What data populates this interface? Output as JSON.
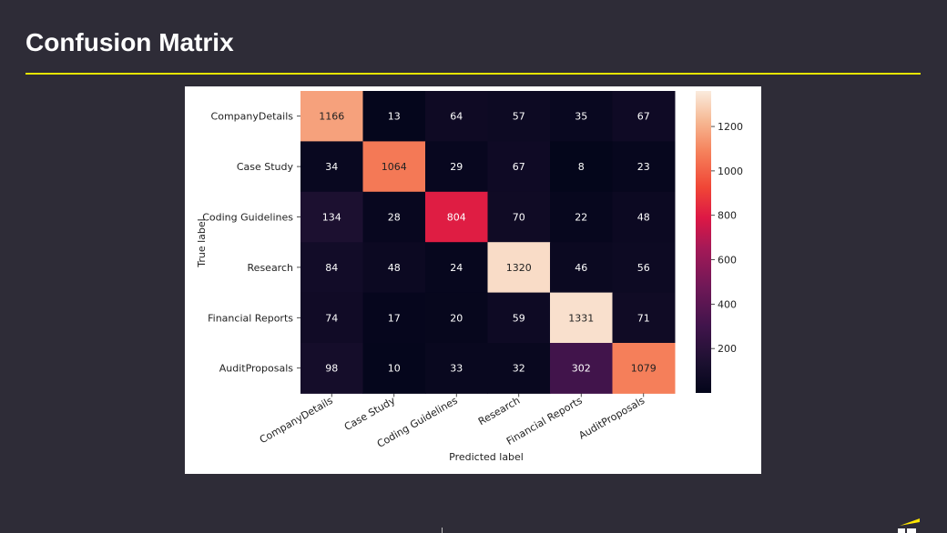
{
  "slide": {
    "title": "Confusion Matrix"
  },
  "theme": {
    "background": "#2e2c37",
    "title_color": "#ffffff",
    "accent_rule": "#e6e600",
    "card_background": "#ffffff"
  },
  "chart_data": {
    "type": "heatmap",
    "title": "",
    "xlabel": "Predicted label",
    "ylabel": "True label",
    "x_categories": [
      "CompanyDetails",
      "Case Study",
      "Coding Guidelines",
      "Research",
      "Financial Reports",
      "AuditProposals"
    ],
    "y_categories": [
      "CompanyDetails",
      "Case Study",
      "Coding Guidelines",
      "Research",
      "Financial Reports",
      "AuditProposals"
    ],
    "values": [
      [
        1166,
        13,
        64,
        57,
        35,
        67
      ],
      [
        34,
        1064,
        29,
        67,
        8,
        23
      ],
      [
        134,
        28,
        804,
        70,
        22,
        48
      ],
      [
        84,
        48,
        24,
        1320,
        46,
        56
      ],
      [
        74,
        17,
        20,
        59,
        1331,
        71
      ],
      [
        98,
        10,
        33,
        32,
        302,
        1079
      ]
    ],
    "colormap": "rocket",
    "colorbar": {
      "range": [
        0,
        1360
      ],
      "ticks": [
        200,
        400,
        600,
        800,
        1000,
        1200
      ],
      "tick_labels": [
        "200",
        "400",
        "600",
        "800",
        "1000",
        "1200"
      ]
    },
    "grid": false,
    "legend": "colorbar-right"
  }
}
